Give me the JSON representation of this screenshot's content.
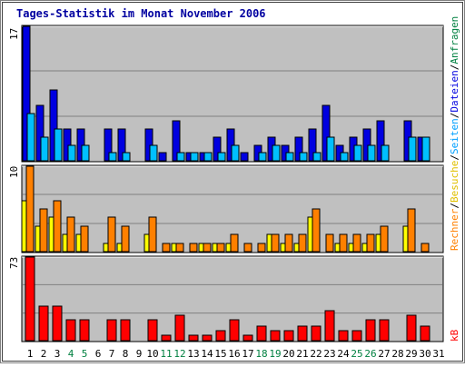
{
  "title": "Tages-Statistik im Monat November 2006",
  "legend": {
    "anfragen": "Anfragen",
    "dateien": "Dateien",
    "seiten": "Seiten",
    "besuche": "Besuche",
    "rechner": "Rechner",
    "kb": "kB",
    "separator": "/"
  },
  "colors": {
    "background": "#c0c0c0",
    "anfragen": "#0000e0",
    "dateien": "#00c0ff",
    "seiten": "#00a0ff",
    "besuche": "#ffff00",
    "rechner": "#ff8000",
    "kb": "#ff0000",
    "weekday_label": "#000000",
    "weekend_label": "#008040",
    "title": "#0000a0"
  },
  "chart_data": [
    {
      "type": "bar",
      "panel": "requests",
      "ymax_label": "17",
      "ylim": [
        0,
        17
      ],
      "categories": [
        "1",
        "2",
        "3",
        "4",
        "5",
        "6",
        "7",
        "8",
        "9",
        "10",
        "11",
        "12",
        "13",
        "14",
        "15",
        "16",
        "17",
        "18",
        "19",
        "20",
        "21",
        "22",
        "23",
        "24",
        "25",
        "26",
        "27",
        "28",
        "29",
        "30",
        "31"
      ],
      "series": [
        {
          "name": "Anfragen",
          "values": [
            17,
            7,
            9,
            4,
            4,
            0,
            4,
            4,
            0,
            4,
            1,
            5,
            1,
            1,
            3,
            4,
            1,
            2,
            3,
            2,
            3,
            4,
            7,
            2,
            3,
            4,
            5,
            0,
            5,
            3,
            0
          ]
        },
        {
          "name": "Dateien",
          "values": [
            6,
            3,
            4,
            2,
            2,
            0,
            1,
            1,
            0,
            2,
            0,
            1,
            1,
            1,
            1,
            2,
            0,
            1,
            2,
            1,
            1,
            1,
            3,
            1,
            2,
            2,
            2,
            0,
            3,
            3,
            0
          ]
        }
      ]
    },
    {
      "type": "bar",
      "panel": "visits",
      "ymax_label": "10",
      "ylim": [
        0,
        10
      ],
      "categories": [
        "1",
        "2",
        "3",
        "4",
        "5",
        "6",
        "7",
        "8",
        "9",
        "10",
        "11",
        "12",
        "13",
        "14",
        "15",
        "16",
        "17",
        "18",
        "19",
        "20",
        "21",
        "22",
        "23",
        "24",
        "25",
        "26",
        "27",
        "28",
        "29",
        "30",
        "31"
      ],
      "series": [
        {
          "name": "Besuche",
          "values": [
            6,
            3,
            4,
            2,
            2,
            0,
            1,
            1,
            0,
            2,
            0,
            1,
            0,
            1,
            1,
            1,
            0,
            0,
            2,
            1,
            1,
            4,
            0,
            1,
            1,
            1,
            2,
            0,
            3,
            0,
            0
          ]
        },
        {
          "name": "Rechner",
          "values": [
            10,
            5,
            6,
            4,
            3,
            0,
            4,
            3,
            0,
            4,
            1,
            1,
            1,
            1,
            1,
            2,
            1,
            1,
            2,
            2,
            2,
            5,
            2,
            2,
            2,
            2,
            3,
            0,
            5,
            1,
            0
          ]
        }
      ]
    },
    {
      "type": "bar",
      "panel": "kbytes",
      "ymax_label": "73",
      "ylim": [
        0,
        73
      ],
      "categories": [
        "1",
        "2",
        "3",
        "4",
        "5",
        "6",
        "7",
        "8",
        "9",
        "10",
        "11",
        "12",
        "13",
        "14",
        "15",
        "16",
        "17",
        "18",
        "19",
        "20",
        "21",
        "22",
        "23",
        "24",
        "25",
        "26",
        "27",
        "28",
        "29",
        "30",
        "31"
      ],
      "series": [
        {
          "name": "kB",
          "values": [
            73,
            30,
            30,
            18,
            18,
            0,
            18,
            18,
            0,
            18,
            5,
            22,
            5,
            5,
            9,
            18,
            5,
            13,
            9,
            9,
            13,
            13,
            26,
            9,
            9,
            18,
            18,
            0,
            22,
            13,
            0
          ]
        }
      ]
    }
  ]
}
